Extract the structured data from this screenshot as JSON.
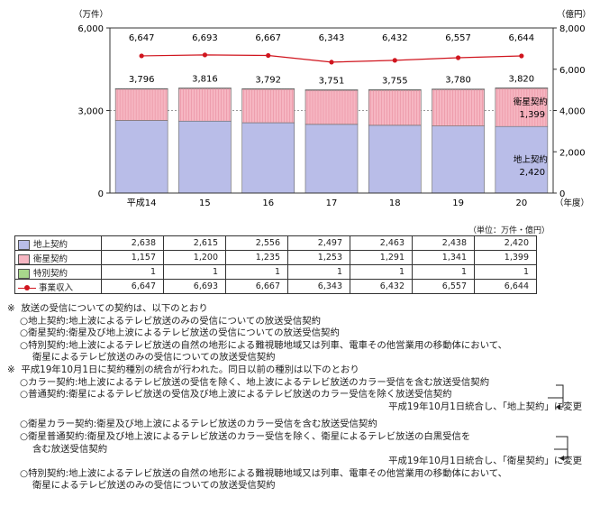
{
  "chart_data": {
    "type": "bar",
    "stacked": true,
    "left_unit": "（万件）",
    "right_unit": "（億円）",
    "x_unit": "（年度）",
    "categories": [
      "平成14",
      "15",
      "16",
      "17",
      "18",
      "19",
      "20"
    ],
    "left_axis": {
      "ylim": [
        0,
        6000
      ],
      "ticks": [
        "0",
        "3,000",
        "6,000"
      ]
    },
    "right_axis": {
      "ylim": [
        0,
        8000
      ],
      "ticks": [
        "0",
        "2,000",
        "4,000",
        "6,000",
        "8,000"
      ]
    },
    "series": [
      {
        "name": "地上契約",
        "color": "#b9bde8",
        "values": [
          2638,
          2615,
          2556,
          2497,
          2463,
          2438,
          2420
        ]
      },
      {
        "name": "衛星契約",
        "color": "#f6b6c2",
        "values": [
          1157,
          1200,
          1235,
          1253,
          1291,
          1341,
          1399
        ]
      },
      {
        "name": "特別契約",
        "color": "#a8d68c",
        "values": [
          1,
          1,
          1,
          1,
          1,
          1,
          1
        ]
      }
    ],
    "line_series": {
      "name": "事業収入",
      "axis": "right",
      "color": "#d0151e",
      "values": [
        6647,
        6693,
        6667,
        6343,
        6432,
        6557,
        6644
      ]
    },
    "total_labels": [
      "3,796",
      "3,816",
      "3,792",
      "3,751",
      "3,755",
      "3,780",
      "3,820"
    ],
    "line_labels": [
      "6,647",
      "6,693",
      "6,667",
      "6,343",
      "6,432",
      "6,557",
      "6,644"
    ],
    "in_bar_labels": [
      {
        "category": "20",
        "series": "衛星契約",
        "name": "衛星契約",
        "value": "1,399"
      },
      {
        "category": "20",
        "series": "地上契約",
        "name": "地上契約",
        "value": "2,420"
      }
    ]
  },
  "table": {
    "unit_note": "（単位：万件・億円）",
    "rows": [
      {
        "label": "地上契約",
        "kind": "swatch",
        "color": "#b9bde8",
        "cells": [
          "2,638",
          "2,615",
          "2,556",
          "2,497",
          "2,463",
          "2,438",
          "2,420"
        ]
      },
      {
        "label": "衛星契約",
        "kind": "swatch",
        "color": "#f6b6c2",
        "cells": [
          "1,157",
          "1,200",
          "1,235",
          "1,253",
          "1,291",
          "1,341",
          "1,399"
        ]
      },
      {
        "label": "特別契約",
        "kind": "swatch",
        "color": "#a8d68c",
        "cells": [
          "1",
          "1",
          "1",
          "1",
          "1",
          "1",
          "1"
        ]
      },
      {
        "label": "事業収入",
        "kind": "line",
        "color": "#d0151e",
        "cells": [
          "6,647",
          "6,693",
          "6,667",
          "6,343",
          "6,432",
          "6,557",
          "6,644"
        ]
      }
    ]
  },
  "notes": {
    "mark": "※",
    "note1_head": "放送の受信についての契約は、以下のとおり",
    "note1_items": [
      "○地上契約:地上波によるテレビ放送のみの受信についての放送受信契約",
      "○衛星契約:衛星及び地上波によるテレビ放送の受信についての放送受信契約",
      "○特別契約:地上波によるテレビ放送の自然の地形による難視聴地域又は列車、電車その他営業用の移動体において、",
      "衛星によるテレビ放送のみの受信についての放送受信契約"
    ],
    "note2_head": "平成19年10月1日に契約種別の統合が行われた。同日以前の種別は以下のとおり",
    "note2_items": [
      "○カラー契約:地上波によるテレビ放送の受信を除く、地上波によるテレビ放送のカラー受信を含む放送受信契約",
      "○普通契約:衛星によるテレビ放送の受信及び地上波によるテレビ放送のカラー受信を除く放送受信契約"
    ],
    "merge1": "平成19年10月1日統合し、「地上契約」に変更",
    "note2_items_b": [
      "○衛星カラー契約:衛星及び地上波によるテレビ放送のカラー受信を含む放送受信契約",
      "○衛星普通契約:衛星及び地上波によるテレビ放送のカラー受信を除く、衛星によるテレビ放送の白黒受信を",
      "含む放送受信契約"
    ],
    "merge2": "平成19年10月1日統合し、「衛星契約」に変更",
    "note2_items_c": [
      "○特別契約:地上波によるテレビ放送の自然の地形による難視聴地域又は列車、電車その他営業用の移動体において、",
      "衛星によるテレビ放送のみの受信についての放送受信契約"
    ]
  }
}
